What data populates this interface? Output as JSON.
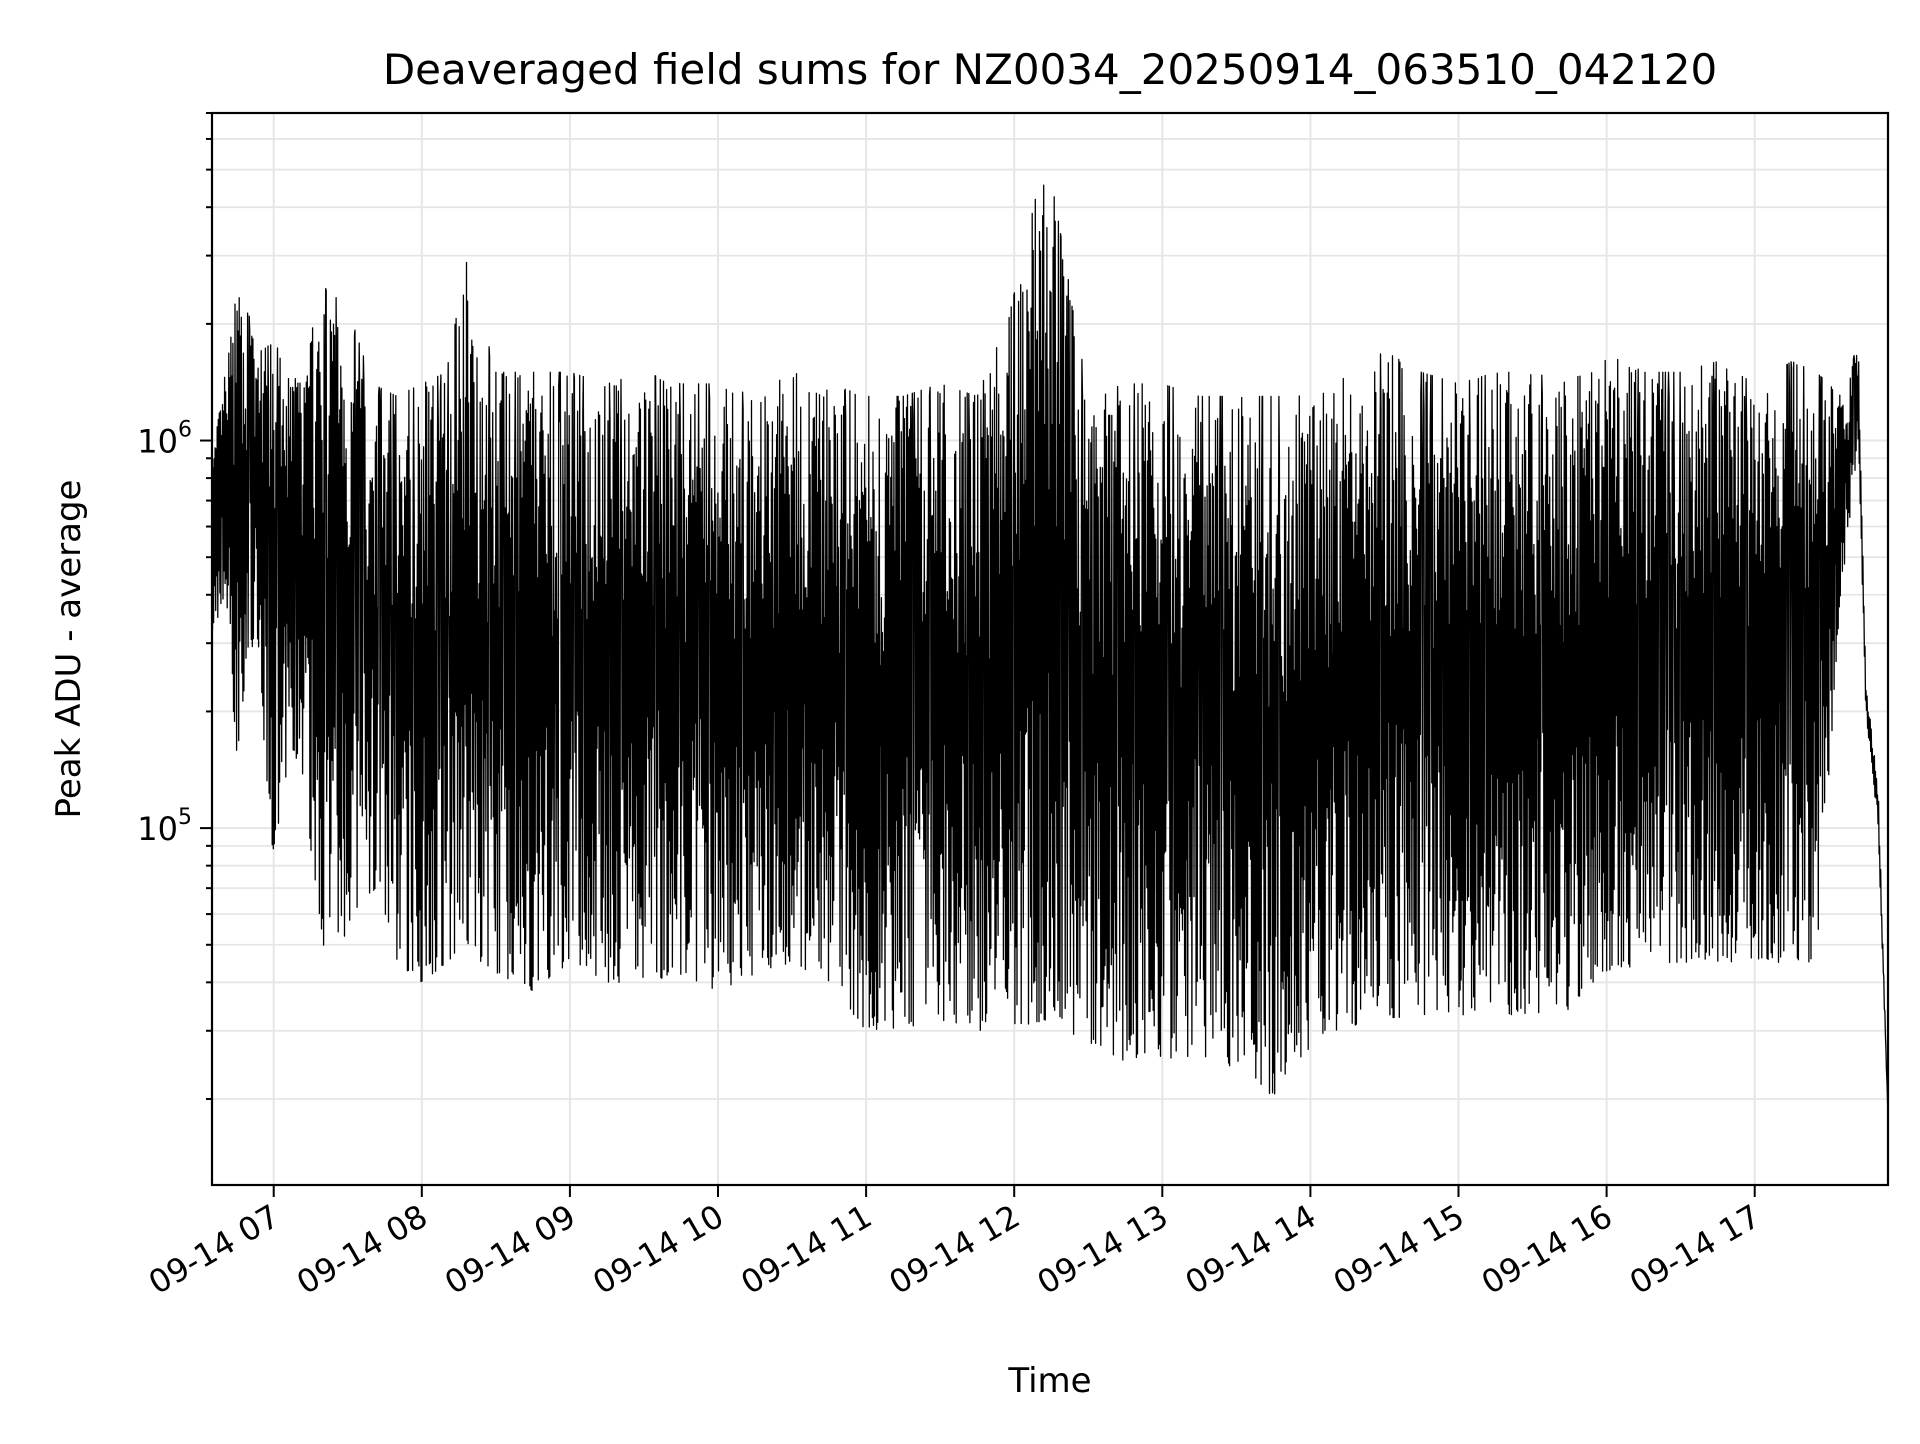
{
  "chart_data": {
    "type": "line",
    "title": "Deaveraged field sums for NZ0034_20250914_063510_042120",
    "xlabel": "Time",
    "ylabel": "Peak ADU - average",
    "x_ticks": [
      "09-14 07",
      "09-14 08",
      "09-14 09",
      "09-14 10",
      "09-14 11",
      "09-14 12",
      "09-14 13",
      "09-14 14",
      "09-14 15",
      "09-14 16",
      "09-14 17"
    ],
    "y_ticks": [
      {
        "base": "10",
        "exp": "5",
        "value": 100000
      },
      {
        "base": "10",
        "exp": "6",
        "value": 1000000
      }
    ],
    "y_scale": "log",
    "ylim": [
      12000,
      7000000
    ],
    "xlim": [
      "2025-09-14 06:35",
      "2025-09-14 17:54"
    ],
    "grid": true,
    "line_color": "#000000",
    "series": [
      {
        "x": [
          "2025-09-14 06:35",
          "2025-09-14 06:40",
          "2025-09-14 06:45",
          "2025-09-14 06:50",
          "2025-09-14 06:55",
          "2025-09-14 07:00",
          "2025-09-14 07:10",
          "2025-09-14 07:20",
          "2025-09-14 07:30",
          "2025-09-14 07:40",
          "2025-09-14 07:50",
          "2025-09-14 08:00",
          "2025-09-14 08:10",
          "2025-09-14 08:18",
          "2025-09-14 08:30",
          "2025-09-14 08:45",
          "2025-09-14 09:00",
          "2025-09-14 09:15",
          "2025-09-14 09:30",
          "2025-09-14 09:45",
          "2025-09-14 10:00",
          "2025-09-14 10:15",
          "2025-09-14 10:30",
          "2025-09-14 10:45",
          "2025-09-14 11:00",
          "2025-09-14 11:15",
          "2025-09-14 11:30",
          "2025-09-14 11:45",
          "2025-09-14 11:58",
          "2025-09-14 12:13",
          "2025-09-14 12:30",
          "2025-09-14 12:45",
          "2025-09-14 13:00",
          "2025-09-14 13:15",
          "2025-09-14 13:30",
          "2025-09-14 13:45",
          "2025-09-14 13:55",
          "2025-09-14 14:10",
          "2025-09-14 14:30",
          "2025-09-14 14:45",
          "2025-09-14 15:00",
          "2025-09-14 15:15",
          "2025-09-14 15:30",
          "2025-09-14 15:45",
          "2025-09-14 16:00",
          "2025-09-14 16:15",
          "2025-09-14 16:30",
          "2025-09-14 16:45",
          "2025-09-14 17:00",
          "2025-09-14 17:15",
          "2025-09-14 17:25",
          "2025-09-14 17:35",
          "2025-09-14 17:42",
          "2025-09-14 17:45",
          "2025-09-14 17:50",
          "2025-09-14 17:54"
        ],
        "max": [
          900000,
          1500000,
          2400000,
          2100000,
          1700000,
          1800000,
          1400000,
          2500000,
          2200000,
          1400000,
          1300000,
          1400000,
          1500000,
          2900000,
          1500000,
          1500000,
          1500000,
          1400000,
          1500000,
          1400000,
          1400000,
          1300000,
          1500000,
          1400000,
          1300000,
          1300000,
          1400000,
          1300000,
          2100000,
          5600000,
          1300000,
          1400000,
          1400000,
          1300000,
          1300000,
          1300000,
          1300000,
          1400000,
          1700000,
          1500000,
          1400000,
          1500000,
          1500000,
          1400000,
          1700000,
          1500000,
          1500000,
          1600000,
          1400000,
          1600000,
          1500000,
          1300000,
          1800000,
          240000,
          130000,
          18000
        ],
        "min": [
          300000,
          400000,
          150000,
          300000,
          200000,
          80000,
          150000,
          50000,
          45000,
          70000,
          45000,
          40000,
          45000,
          48000,
          42000,
          38000,
          45000,
          40000,
          40000,
          42000,
          38000,
          42000,
          45000,
          40000,
          30000,
          30000,
          32000,
          30000,
          30000,
          32000,
          28000,
          25000,
          25000,
          26000,
          24000,
          20000,
          25000,
          30000,
          32000,
          33000,
          33000,
          33000,
          33000,
          33000,
          40000,
          45000,
          45000,
          45000,
          45000,
          45000,
          45000,
          400000,
          1000000,
          200000,
          100000,
          18000
        ]
      }
    ]
  }
}
